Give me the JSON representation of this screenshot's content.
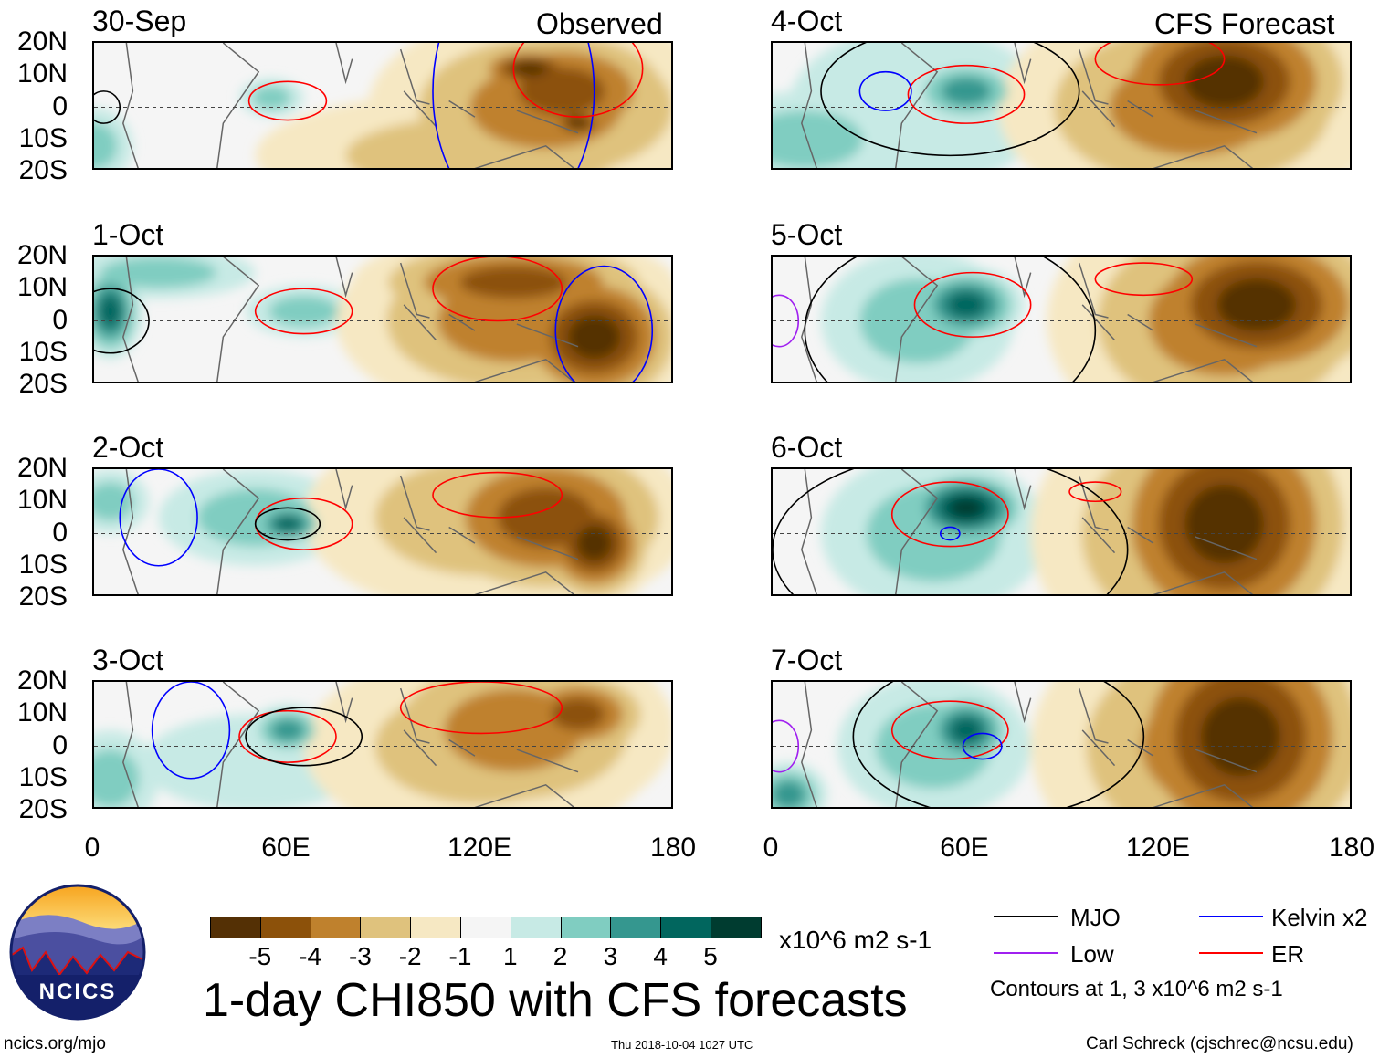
{
  "header": {
    "observed_label": "Observed",
    "forecast_label": "CFS Forecast"
  },
  "panels": [
    {
      "date": "30-Sep",
      "group": "observed"
    },
    {
      "date": "1-Oct",
      "group": "observed"
    },
    {
      "date": "2-Oct",
      "group": "observed"
    },
    {
      "date": "3-Oct",
      "group": "observed"
    },
    {
      "date": "4-Oct",
      "group": "forecast"
    },
    {
      "date": "5-Oct",
      "group": "forecast"
    },
    {
      "date": "6-Oct",
      "group": "forecast"
    },
    {
      "date": "7-Oct",
      "group": "forecast"
    }
  ],
  "lat_labels": [
    "20N",
    "10N",
    "0",
    "10S",
    "20S"
  ],
  "lon_labels": [
    "0",
    "60E",
    "120E",
    "180"
  ],
  "colorbar": {
    "ticks": [
      "-5",
      "-4",
      "-3",
      "-2",
      "-1",
      "1",
      "2",
      "3",
      "4",
      "5"
    ],
    "colors": [
      "#543005",
      "#8c510a",
      "#bf812d",
      "#dfc27d",
      "#f6e8c3",
      "#f5f5f5",
      "#c7eae5",
      "#80cdc1",
      "#35978f",
      "#01665e",
      "#003c30"
    ],
    "units": "x10^6 m2 s-1"
  },
  "title": "1-day CHI850 with CFS forecasts",
  "legend": {
    "items": [
      {
        "label": "MJO",
        "color": "#000000"
      },
      {
        "label": "Kelvin x2",
        "color": "#0000ff"
      },
      {
        "label": "Low",
        "color": "#a020f0"
      },
      {
        "label": "ER",
        "color": "#ff0000"
      }
    ],
    "note": "Contours at 1, 3 x10^6 m2 s-1"
  },
  "footer": {
    "url": "ncics.org/mjo",
    "timestamp": "Thu 2018-10-04 1027 UTC",
    "author": "Carl Schreck (cjschrec@ncsu.edu)"
  },
  "logo": {
    "text": "NCICS"
  }
}
